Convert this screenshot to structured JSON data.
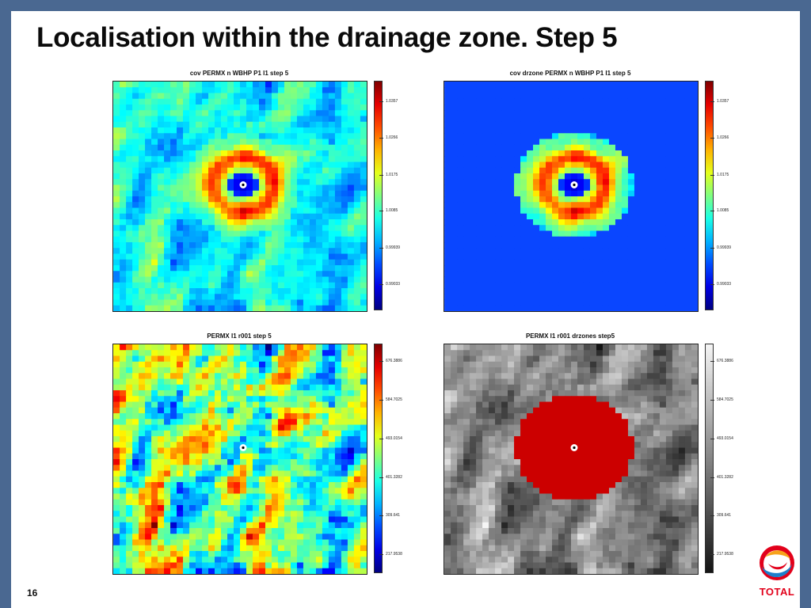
{
  "slide": {
    "title": "Localisation within the drainage zone. Step 5",
    "page_number": "16",
    "logo_text": "TOTAL"
  },
  "chart_data": [
    {
      "type": "heatmap",
      "title": "cov  PERMX n WBHP  P1  I1 step 5",
      "colormap": "jet",
      "colorbar_ticks": [
        "1.0357",
        "1.0266",
        "1.0175",
        "1.0085",
        "0.99939",
        "0.99033"
      ],
      "colorbar_range": [
        0.984,
        1.041
      ],
      "well_marker": true
    },
    {
      "type": "heatmap",
      "title": "cov drzone  PERMX n WBHP  P1  I1 step 5",
      "colormap": "jet",
      "colorbar_ticks": [
        "1.0357",
        "1.0266",
        "1.0175",
        "1.0085",
        "0.99939",
        "0.99033"
      ],
      "colorbar_range": [
        0.984,
        1.041
      ],
      "well_marker": true,
      "masked_outside_drainage_zone": true
    },
    {
      "type": "heatmap",
      "title": "PERMX I1 r001 step 5",
      "colormap": "jet",
      "colorbar_ticks": [
        "676.3886",
        "584.7025",
        "493.0154",
        "401.3282",
        "309.641",
        "217.9538"
      ],
      "colorbar_range": [
        175,
        720
      ],
      "well_marker": true
    },
    {
      "type": "heatmap",
      "title": "PERMX I1 r001 drzones step5",
      "colormap": "gray",
      "colorbar_ticks": [
        "676.3886",
        "584.7025",
        "493.0154",
        "401.3282",
        "309.641",
        "217.9538"
      ],
      "colorbar_range": [
        175,
        720
      ],
      "well_marker": true,
      "drainage_zone_color": "#cc0000"
    }
  ],
  "colors": {
    "frame": "#4a6891",
    "drainage_zone": "#cc0000",
    "masked": "#0a46ff",
    "logo_red": "#e2001a",
    "logo_blue": "#1e7fcb",
    "logo_orange": "#f7a21b"
  }
}
